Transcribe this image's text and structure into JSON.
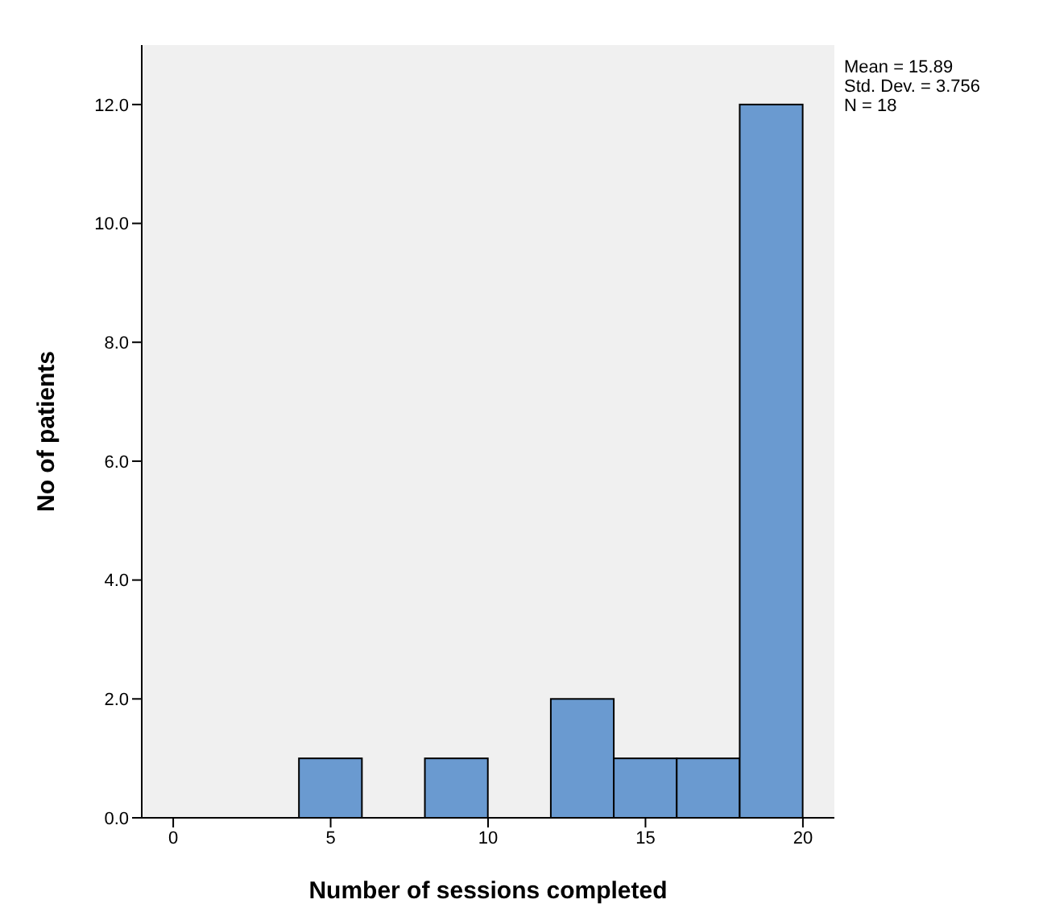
{
  "chart_data": {
    "type": "histogram",
    "xlabel": "Number of sessions completed",
    "ylabel": "No of patients",
    "bins": [
      4,
      6,
      8,
      10,
      12,
      14,
      16,
      18,
      20
    ],
    "values": [
      1,
      0,
      1,
      0,
      2,
      1,
      1,
      12
    ],
    "color": "#6a9ad0",
    "xlim": [
      -1,
      21
    ],
    "xticks": [
      0,
      5,
      10,
      15,
      20
    ],
    "ylim": [
      0,
      13
    ],
    "yticks": [
      {
        "value": 0,
        "label": "0.0"
      },
      {
        "value": 2,
        "label": "2.0"
      },
      {
        "value": 4,
        "label": "4.0"
      },
      {
        "value": 6,
        "label": "6.0"
      },
      {
        "value": 8,
        "label": "8.0"
      },
      {
        "value": 10,
        "label": "10.0"
      },
      {
        "value": 12,
        "label": "12.0"
      }
    ],
    "grid": false,
    "legend": false,
    "annotations": [
      "Mean = 15.89",
      "Std. Dev. = 3.756",
      "N = 18"
    ]
  }
}
